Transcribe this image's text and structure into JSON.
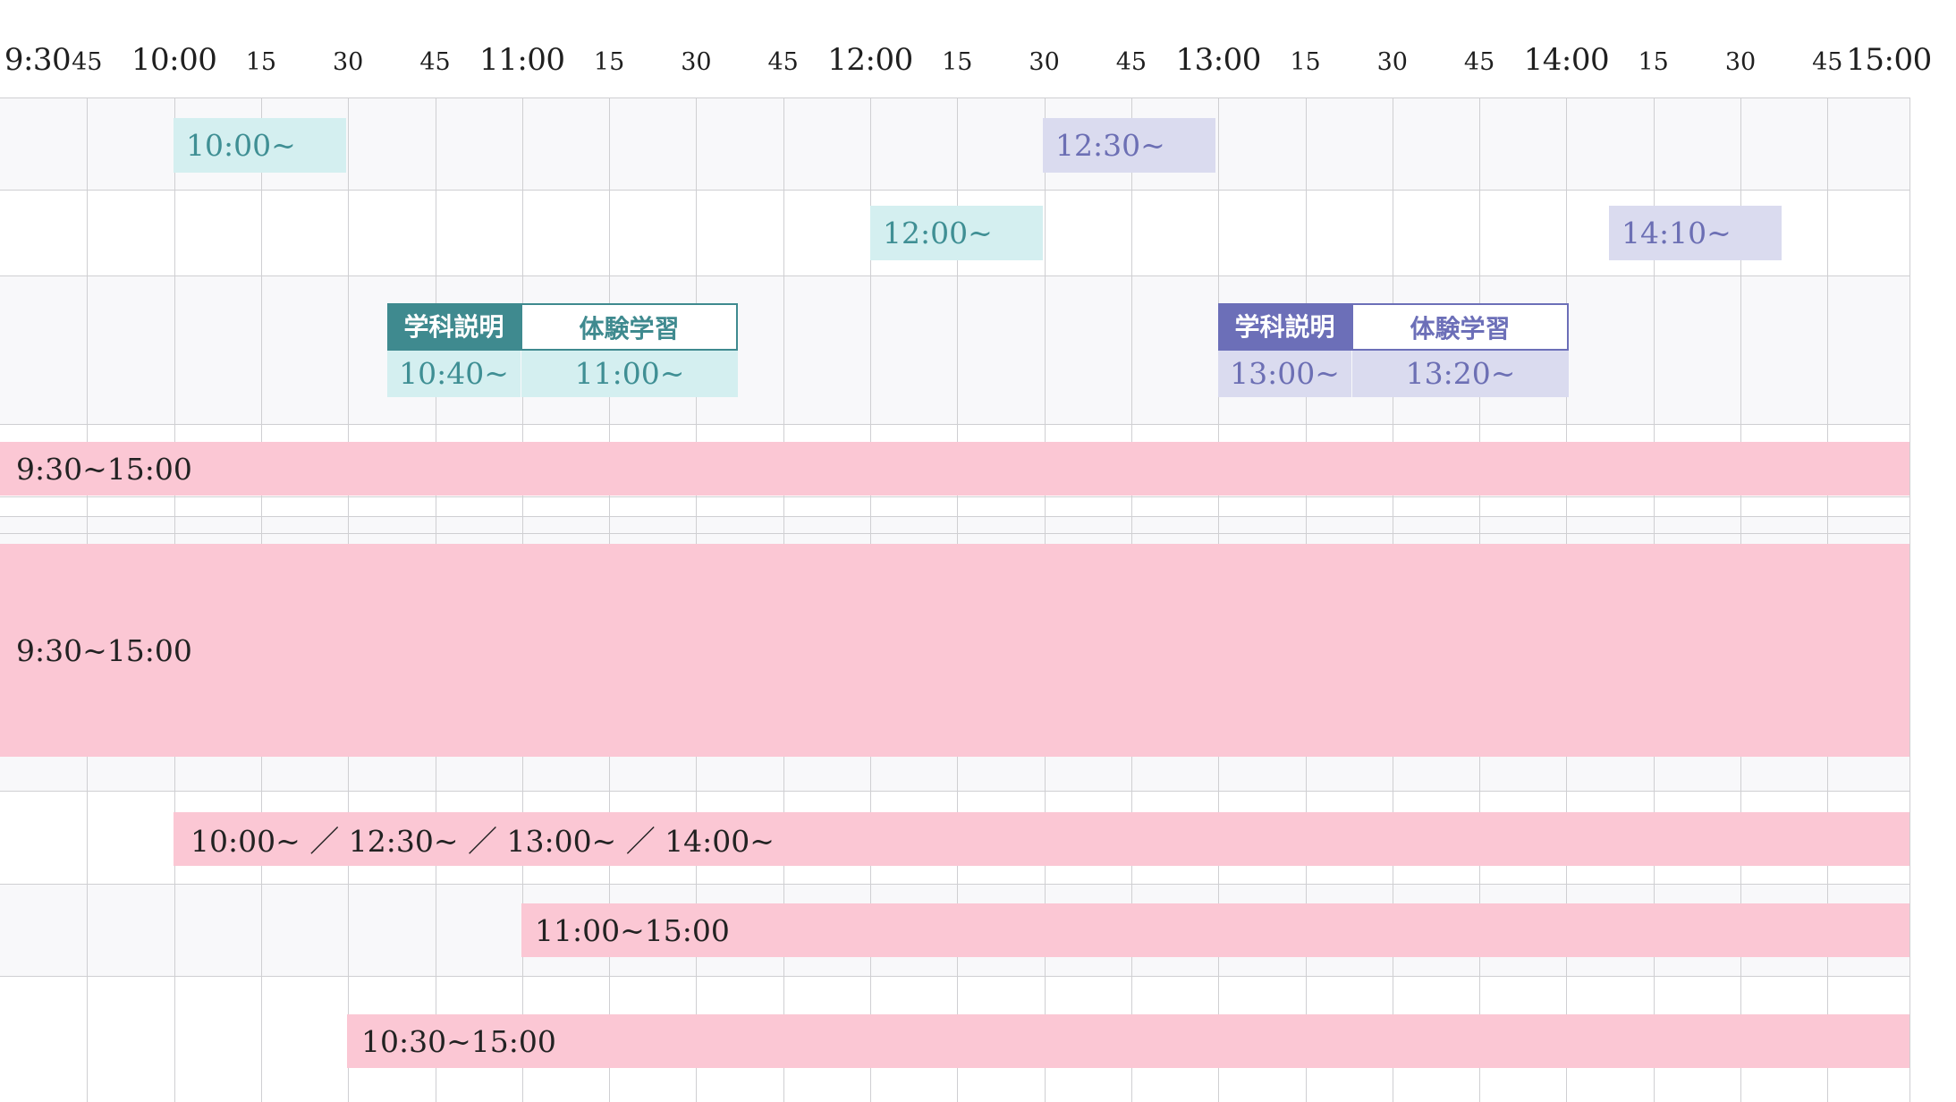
{
  "timeline": {
    "ticks": [
      {
        "label": "9:30",
        "kind": "hour"
      },
      {
        "label": "45",
        "kind": "minor"
      },
      {
        "label": "10:00",
        "kind": "hour"
      },
      {
        "label": "15",
        "kind": "minor"
      },
      {
        "label": "30",
        "kind": "minor"
      },
      {
        "label": "45",
        "kind": "minor"
      },
      {
        "label": "11:00",
        "kind": "hour"
      },
      {
        "label": "15",
        "kind": "minor"
      },
      {
        "label": "30",
        "kind": "minor"
      },
      {
        "label": "45",
        "kind": "minor"
      },
      {
        "label": "12:00",
        "kind": "hour"
      },
      {
        "label": "15",
        "kind": "minor"
      },
      {
        "label": "30",
        "kind": "minor"
      },
      {
        "label": "45",
        "kind": "minor"
      },
      {
        "label": "13:00",
        "kind": "hour"
      },
      {
        "label": "15",
        "kind": "minor"
      },
      {
        "label": "30",
        "kind": "minor"
      },
      {
        "label": "45",
        "kind": "minor"
      },
      {
        "label": "14:00",
        "kind": "hour"
      },
      {
        "label": "15",
        "kind": "minor"
      },
      {
        "label": "30",
        "kind": "minor"
      },
      {
        "label": "45",
        "kind": "minor"
      },
      {
        "label": "15:00",
        "kind": "hour"
      }
    ]
  },
  "colors": {
    "teal_light": "#d4eff0",
    "teal_dark": "#3f8a8f",
    "purple_light": "#dadbef",
    "purple_dark": "#6c6fb8",
    "pink": "#fbc7d4",
    "grid": "#cfcfd2"
  },
  "rows": {
    "row1": {
      "chip_a": "10:00~",
      "chip_b": "12:30~"
    },
    "row2": {
      "chip_a": "12:00~",
      "chip_b": "14:10~"
    },
    "row3": {
      "morning": {
        "tag_a": "学科説明",
        "tag_b": "体験学習",
        "time_a": "10:40~",
        "time_b": "11:00~"
      },
      "afternoon": {
        "tag_a": "学科説明",
        "tag_b": "体験学習",
        "time_a": "13:00~",
        "time_b": "13:20~"
      }
    },
    "row4": {
      "bar": "9:30~15:00"
    },
    "row5": {
      "bar": "9:30~15:00"
    },
    "row6": {
      "bar": "10:00~ ／ 12:30~ ／  13:00~ ／ 14:00~"
    },
    "row7": {
      "bar": "11:00~15:00"
    },
    "row8": {
      "bar": "10:30~15:00"
    }
  }
}
